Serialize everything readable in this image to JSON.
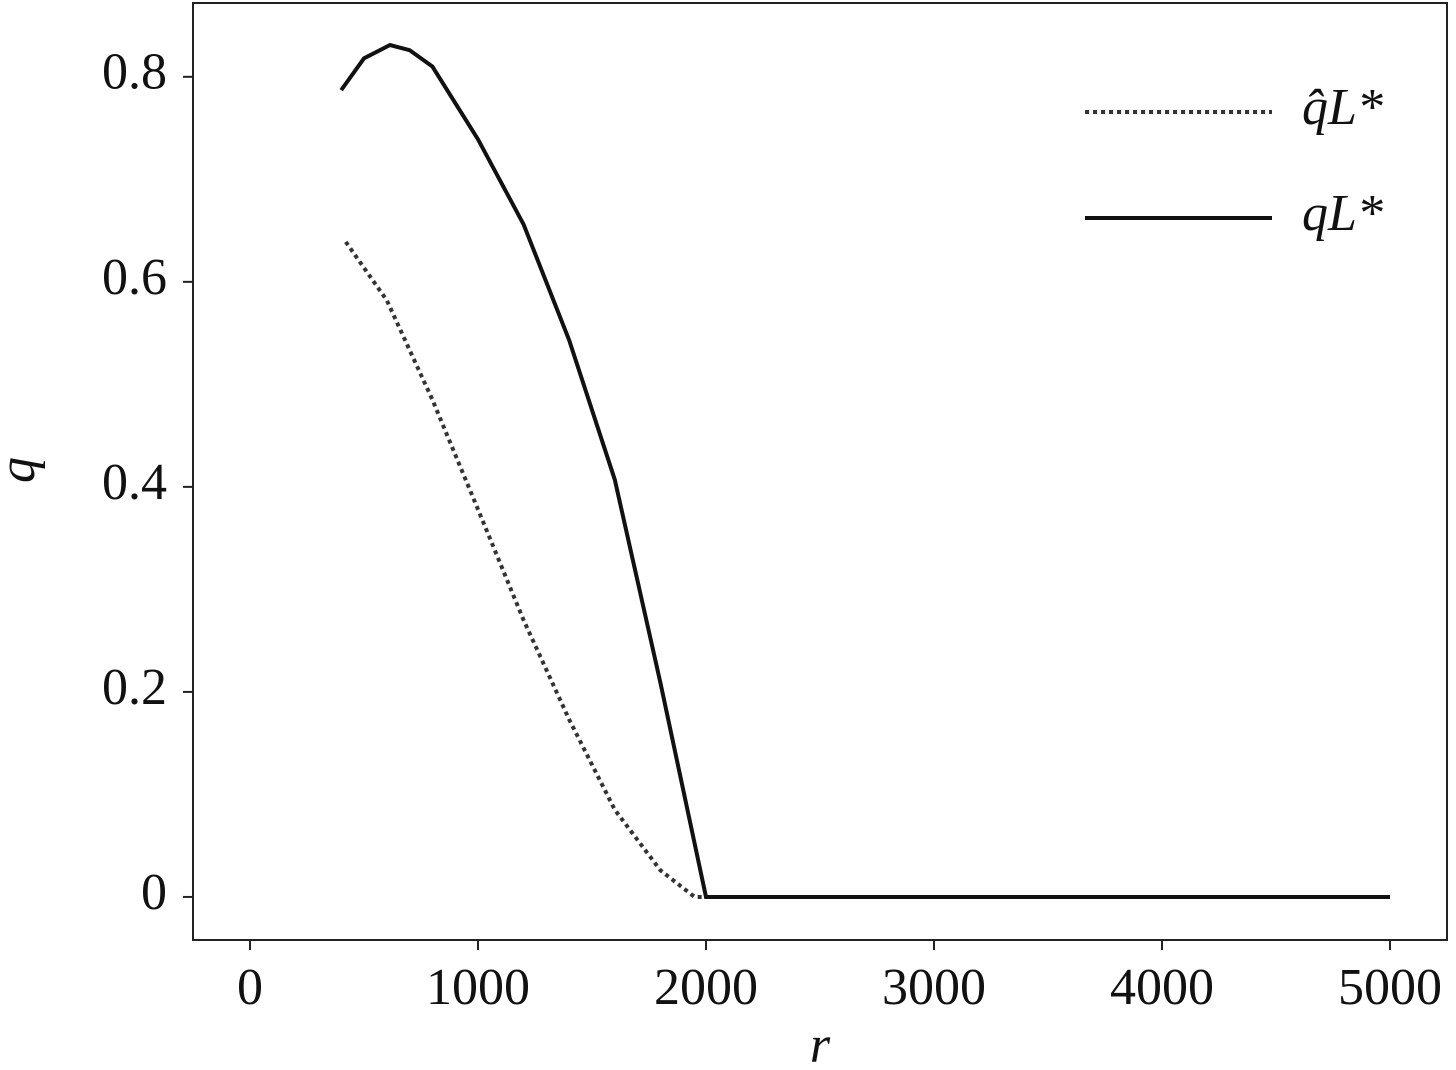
{
  "chart_data": {
    "type": "line",
    "x_label": "r",
    "y_label": "q",
    "xlim": [
      -250,
      5250
    ],
    "ylim": [
      -0.042,
      0.872
    ],
    "xticks": [
      0,
      1000,
      2000,
      3000,
      4000,
      5000
    ],
    "yticks": [
      0,
      0.2,
      0.4,
      0.6,
      0.8
    ],
    "legend": "upper right",
    "series": [
      {
        "name": "q̂L*",
        "color": "#333333",
        "style": "dotted",
        "x": [
          420,
          600,
          800,
          1000,
          1200,
          1400,
          1600,
          1800,
          1950,
          2000,
          5000
        ],
        "values": [
          0.639,
          0.582,
          0.485,
          0.378,
          0.27,
          0.173,
          0.085,
          0.026,
          0,
          0,
          0
        ]
      },
      {
        "name": "qL*",
        "color": "#111111",
        "style": "solid",
        "x": [
          400,
          500,
          614,
          700,
          800,
          1000,
          1200,
          1400,
          1600,
          1800,
          2000,
          5000
        ],
        "values": [
          0.787,
          0.818,
          0.831,
          0.826,
          0.81,
          0.739,
          0.656,
          0.543,
          0.407,
          0.209,
          0,
          0
        ]
      }
    ]
  }
}
